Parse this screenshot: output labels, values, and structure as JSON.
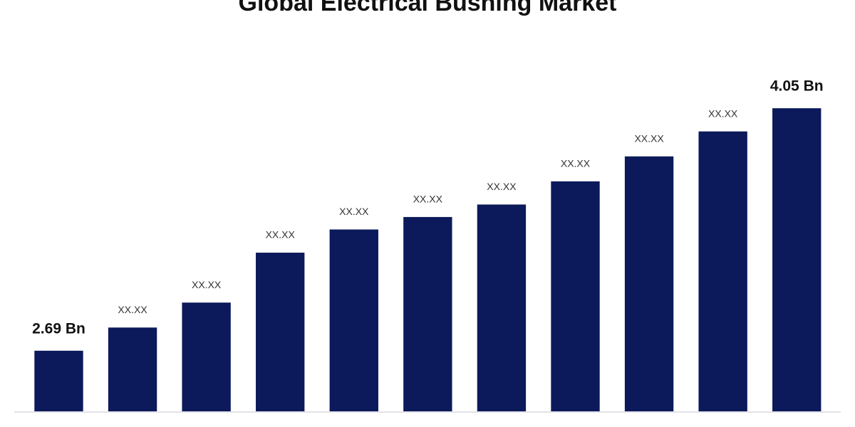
{
  "chart_data": {
    "type": "bar",
    "title": "Global Electrical Bushing Market",
    "values": [
      2.69,
      2.82,
      2.96,
      3.24,
      3.37,
      3.44,
      3.51,
      3.64,
      3.78,
      3.92,
      4.05
    ],
    "value_labels": [
      "2.69 Bn",
      "XX.XX",
      "XX.XX",
      "XX.XX",
      "XX.XX",
      "XX.XX",
      "XX.XX",
      "XX.XX",
      "XX.XX",
      "XX.XX",
      "4.05 Bn"
    ],
    "color": "#0c1a5b",
    "ylim": [
      2.35,
      4.25
    ]
  }
}
